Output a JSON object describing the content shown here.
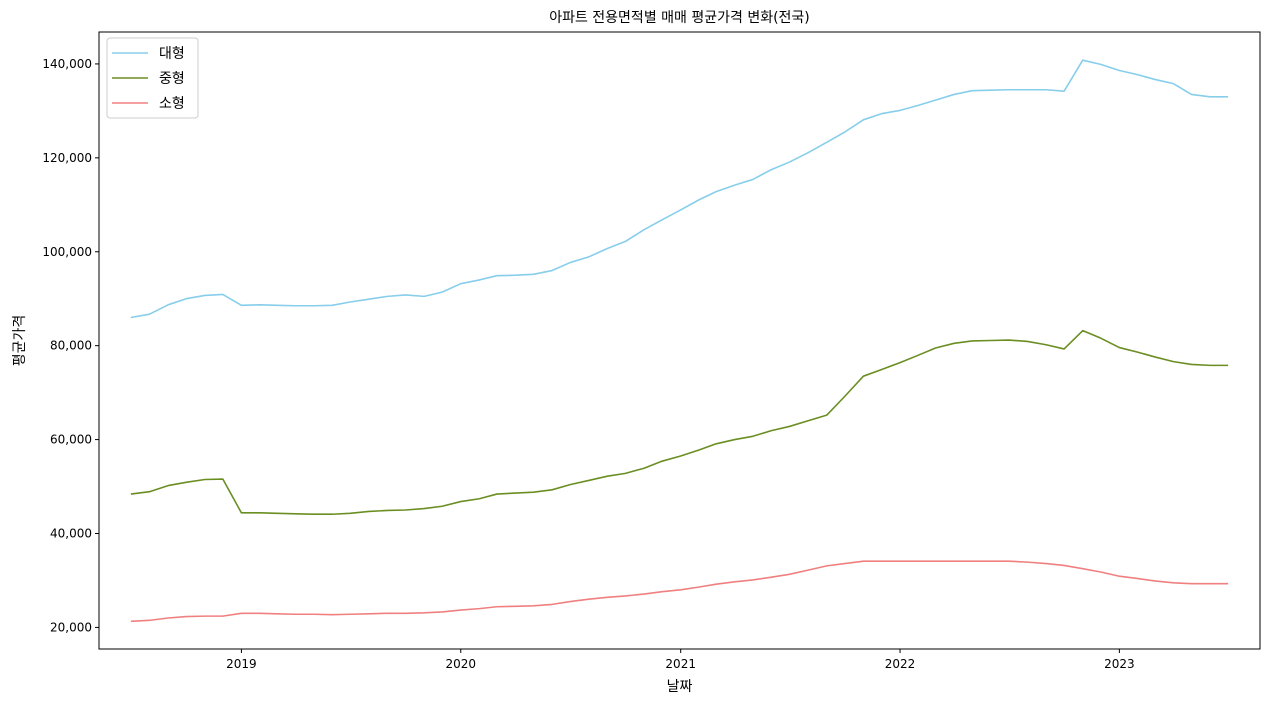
{
  "chart_data": {
    "type": "line",
    "title": "아파트 전용면적별 매매 평균가격 변화(전국)",
    "xlabel": "날짜",
    "ylabel": "평균가격",
    "x_ticks": [
      "2019",
      "2020",
      "2021",
      "2022",
      "2023"
    ],
    "y_ticks": [
      "20,000",
      "40,000",
      "60,000",
      "80,000",
      "100,000",
      "120,000",
      "140,000"
    ],
    "ylim": [
      15400,
      146800
    ],
    "xlim": [
      "2018-05-09",
      "2023-08-23"
    ],
    "grid": false,
    "legend_position": "top-left",
    "x": [
      "2018-07",
      "2018-08",
      "2018-09",
      "2018-10",
      "2018-11",
      "2018-12",
      "2019-01",
      "2019-02",
      "2019-03",
      "2019-04",
      "2019-05",
      "2019-06",
      "2019-07",
      "2019-08",
      "2019-09",
      "2019-10",
      "2019-11",
      "2019-12",
      "2020-01",
      "2020-02",
      "2020-03",
      "2020-04",
      "2020-05",
      "2020-06",
      "2020-07",
      "2020-08",
      "2020-09",
      "2020-10",
      "2020-11",
      "2020-12",
      "2021-01",
      "2021-02",
      "2021-03",
      "2021-04",
      "2021-05",
      "2021-06",
      "2021-07",
      "2021-08",
      "2021-09",
      "2021-10",
      "2021-11",
      "2021-12",
      "2022-01",
      "2022-02",
      "2022-03",
      "2022-04",
      "2022-05",
      "2022-06",
      "2022-07",
      "2022-08",
      "2022-09",
      "2022-10",
      "2022-11",
      "2022-12",
      "2023-01",
      "2023-02",
      "2023-03",
      "2023-04",
      "2023-05",
      "2023-06",
      "2023-07"
    ],
    "series": [
      {
        "name": "대형",
        "color": "#87ceeb",
        "values": [
          86000,
          86700,
          88700,
          90000,
          90700,
          90900,
          88600,
          88700,
          88600,
          88500,
          88500,
          88600,
          89300,
          89900,
          90500,
          90800,
          90500,
          91400,
          93200,
          94000,
          94900,
          95000,
          95200,
          96000,
          97700,
          98900,
          100700,
          102200,
          104700,
          106800,
          108900,
          111100,
          112800,
          114200,
          115400,
          117500,
          119100,
          121100,
          123300,
          125500,
          128100,
          129400,
          130100,
          131200,
          132300,
          133500,
          134300,
          134400,
          134500,
          134500,
          134500,
          134200,
          140800,
          139900,
          138600,
          137700,
          136700,
          135800,
          133500,
          133000,
          133000
        ]
      },
      {
        "name": "중형",
        "color": "#6b8e23",
        "values": [
          48400,
          48900,
          50200,
          50900,
          51500,
          51600,
          44400,
          44400,
          44300,
          44200,
          44100,
          44100,
          44300,
          44700,
          44900,
          45000,
          45300,
          45800,
          46800,
          47400,
          48400,
          48600,
          48800,
          49300,
          50400,
          51300,
          52200,
          52800,
          53900,
          55400,
          56500,
          57800,
          59100,
          60000,
          60700,
          61900,
          62800,
          64000,
          65200,
          69200,
          73500,
          74900,
          76400,
          78000,
          79500,
          80500,
          81000,
          81100,
          81200,
          80900,
          80200,
          79300,
          83200,
          81600,
          79600,
          78600,
          77600,
          76600,
          76000,
          75800,
          75800
        ]
      },
      {
        "name": "소형",
        "color": "#f08080",
        "values": [
          21300,
          21500,
          22000,
          22300,
          22400,
          22400,
          23000,
          23000,
          22900,
          22800,
          22800,
          22700,
          22800,
          22900,
          23000,
          23000,
          23100,
          23300,
          23700,
          24000,
          24400,
          24500,
          24600,
          24900,
          25500,
          26000,
          26400,
          26700,
          27100,
          27600,
          28000,
          28600,
          29200,
          29700,
          30100,
          30700,
          31300,
          32200,
          33100,
          33600,
          34100,
          34100,
          34100,
          34100,
          34100,
          34100,
          34100,
          34100,
          34100,
          33900,
          33600,
          33200,
          32500,
          31800,
          30900,
          30400,
          29900,
          29500,
          29300,
          29300,
          29300
        ]
      }
    ]
  }
}
